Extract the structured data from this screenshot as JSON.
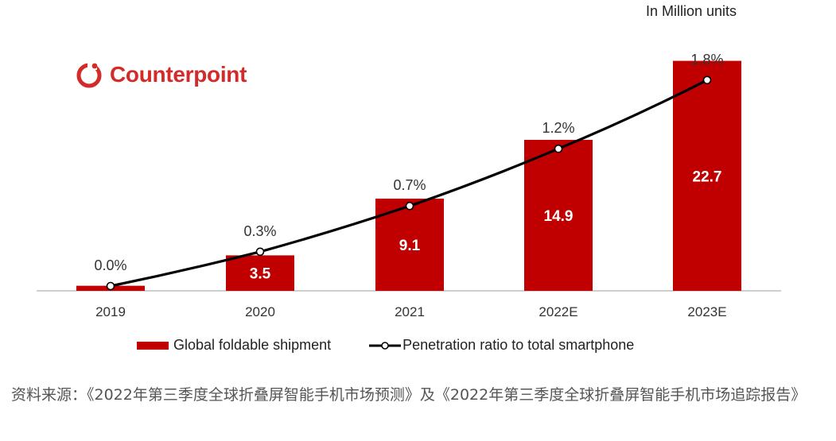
{
  "unit_note": "In Million units",
  "logo": {
    "text": "Counterpoint",
    "color": "#d42a2a"
  },
  "chart_data": {
    "type": "bar",
    "categories": [
      "2019",
      "2020",
      "2021",
      "2022E",
      "2023E"
    ],
    "series": [
      {
        "name": "Global foldable shipment",
        "type": "bar",
        "color": "#c00000",
        "values": [
          0.5,
          3.5,
          9.1,
          14.9,
          22.7
        ],
        "labels": [
          "",
          "3.5",
          "9.1",
          "14.9",
          "22.7"
        ]
      },
      {
        "name": "Penetration ratio to total smartphone",
        "type": "line",
        "color": "#000000",
        "values": [
          0.0,
          0.3,
          0.7,
          1.2,
          1.8
        ],
        "labels": [
          "0.0%",
          "0.3%",
          "0.7%",
          "1.2%",
          "1.8%"
        ]
      }
    ],
    "ylim_bar": [
      0,
      24
    ],
    "ylim_line": [
      0,
      2.0
    ],
    "legend": "bottom"
  },
  "source_caption": "资料来源：《2022年第三季度全球折叠屏智能手机市场预测》及《2022年第三季度全球折叠屏智能手机市场追踪报告》"
}
